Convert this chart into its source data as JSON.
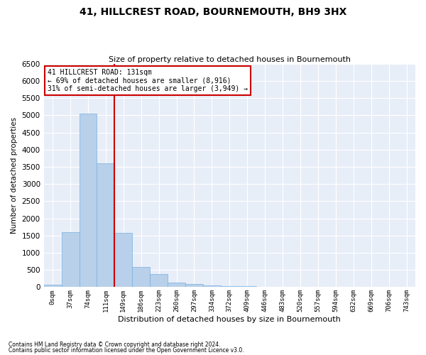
{
  "title": "41, HILLCREST ROAD, BOURNEMOUTH, BH9 3HX",
  "subtitle": "Size of property relative to detached houses in Bournemouth",
  "xlabel": "Distribution of detached houses by size in Bournemouth",
  "ylabel": "Number of detached properties",
  "footnote1": "Contains HM Land Registry data © Crown copyright and database right 2024.",
  "footnote2": "Contains public sector information licensed under the Open Government Licence v3.0.",
  "bar_labels": [
    "0sqm",
    "37sqm",
    "74sqm",
    "111sqm",
    "149sqm",
    "186sqm",
    "223sqm",
    "260sqm",
    "297sqm",
    "334sqm",
    "372sqm",
    "409sqm",
    "446sqm",
    "483sqm",
    "520sqm",
    "557sqm",
    "594sqm",
    "632sqm",
    "669sqm",
    "706sqm",
    "743sqm"
  ],
  "bar_values": [
    70,
    1600,
    5050,
    3600,
    1580,
    580,
    380,
    130,
    100,
    55,
    35,
    20,
    10,
    5,
    3,
    2,
    1,
    1,
    0,
    0,
    0
  ],
  "bar_color": "#b8d0ea",
  "bar_edge_color": "#7aafe0",
  "vline_x": 3.5,
  "vline_color": "#cc0000",
  "annotation_title": "41 HILLCREST ROAD: 131sqm",
  "annotation_line2": "← 69% of detached houses are smaller (8,916)",
  "annotation_line3": "31% of semi-detached houses are larger (3,949) →",
  "annotation_box_color": "#ffffff",
  "annotation_box_edgecolor": "#cc0000",
  "ylim": [
    0,
    6500
  ],
  "yticks": [
    0,
    500,
    1000,
    1500,
    2000,
    2500,
    3000,
    3500,
    4000,
    4500,
    5000,
    5500,
    6000,
    6500
  ],
  "bg_color": "#e8eef8",
  "grid_color": "#ffffff",
  "figwidth": 6.0,
  "figheight": 5.0,
  "dpi": 100
}
